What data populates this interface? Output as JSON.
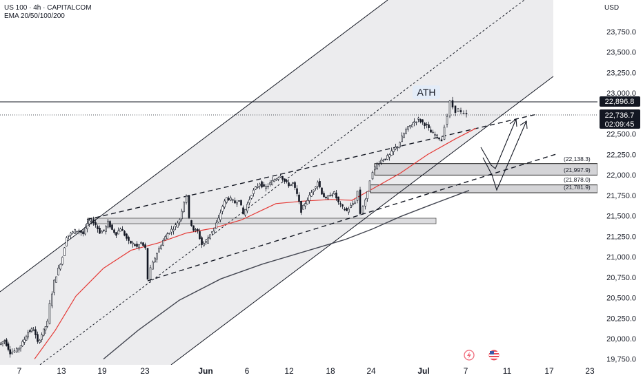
{
  "header": {
    "symbol_line": "US 100 · 4h · CAPITALCOM",
    "indicator_line": "EMA 20/50/100/200"
  },
  "currency": "USD",
  "colors": {
    "up_candle": "#26a69a",
    "down_candle": "#ef5350",
    "price_line": "#131722",
    "ema_fast": "#e53935",
    "ema_slow": "#434651",
    "channel_fill": "#e9e9eb",
    "zone_fill": "#d6d6d9",
    "badge_bg": "#131722"
  },
  "chart_data": {
    "type": "candlestick",
    "title": "US 100 · 4h · CAPITALCOM",
    "ylim": [
      19750,
      24000
    ],
    "ytick_labels": [
      "19,750.0",
      "20,000.0",
      "20,250.0",
      "20,500.0",
      "20,750.0",
      "21,000.0",
      "21,250.0",
      "21,500.0",
      "21,750.0",
      "22,000.0",
      "22,250.0",
      "22,500.0",
      "22,750.0",
      "23,000.0",
      "23,250.0",
      "23,500.0",
      "23,750.0"
    ],
    "yticks": [
      19750,
      20000,
      20250,
      20500,
      20750,
      21000,
      21250,
      21500,
      21750,
      22000,
      22250,
      22500,
      22750,
      23000,
      23250,
      23500,
      23750
    ],
    "xtick_labels": [
      "7",
      "13",
      "19",
      "23",
      "Jun",
      "6",
      "12",
      "18",
      "24",
      "Jul",
      "7",
      "11",
      "17",
      "23"
    ],
    "ath_label": "ATH",
    "ath_value": "22,896.8",
    "last_price": "22,736.7",
    "countdown": "02:09:45",
    "zones": [
      {
        "label_top": "(22,138.3)",
        "label_bottom": "(21,997.9)",
        "top": 22138.3,
        "bottom": 21997.9
      },
      {
        "label_top": "(21,878.0)",
        "label_bottom": "(21,781.9)",
        "top": 21878.0,
        "bottom": 21781.9
      }
    ],
    "price_path_key": [
      [
        0,
        19930
      ],
      [
        8,
        19980
      ],
      [
        16,
        19830
      ],
      [
        26,
        19860
      ],
      [
        34,
        19950
      ],
      [
        42,
        20080
      ],
      [
        50,
        20120
      ],
      [
        56,
        19950
      ],
      [
        62,
        20050
      ],
      [
        70,
        20200
      ],
      [
        74,
        20420
      ],
      [
        80,
        20700
      ],
      [
        86,
        20850
      ],
      [
        92,
        21000
      ],
      [
        98,
        21250
      ],
      [
        104,
        21280
      ],
      [
        110,
        21320
      ],
      [
        116,
        21320
      ],
      [
        122,
        21280
      ],
      [
        128,
        21400
      ],
      [
        134,
        21450
      ],
      [
        140,
        21390
      ],
      [
        146,
        21300
      ],
      [
        152,
        21320
      ],
      [
        158,
        21420
      ],
      [
        164,
        21330
      ],
      [
        170,
        21280
      ],
      [
        176,
        21350
      ],
      [
        182,
        21270
      ],
      [
        188,
        21180
      ],
      [
        194,
        21160
      ],
      [
        200,
        21120
      ],
      [
        206,
        21170
      ],
      [
        212,
        21100
      ],
      [
        216,
        20730
      ],
      [
        220,
        20850
      ],
      [
        226,
        20990
      ],
      [
        232,
        21100
      ],
      [
        238,
        21200
      ],
      [
        244,
        21280
      ],
      [
        250,
        21330
      ],
      [
        256,
        21380
      ],
      [
        262,
        21460
      ],
      [
        268,
        21680
      ],
      [
        272,
        21750
      ],
      [
        276,
        21460
      ],
      [
        282,
        21330
      ],
      [
        288,
        21310
      ],
      [
        294,
        21150
      ],
      [
        300,
        21180
      ],
      [
        306,
        21280
      ],
      [
        312,
        21350
      ],
      [
        318,
        21460
      ],
      [
        324,
        21620
      ],
      [
        330,
        21720
      ],
      [
        336,
        21700
      ],
      [
        342,
        21660
      ],
      [
        348,
        21700
      ],
      [
        354,
        21520
      ],
      [
        360,
        21640
      ],
      [
        366,
        21770
      ],
      [
        372,
        21840
      ],
      [
        378,
        21900
      ],
      [
        384,
        21840
      ],
      [
        390,
        21870
      ],
      [
        396,
        21920
      ],
      [
        402,
        21960
      ],
      [
        408,
        22000
      ],
      [
        414,
        21920
      ],
      [
        420,
        21880
      ],
      [
        426,
        21900
      ],
      [
        432,
        21760
      ],
      [
        438,
        21560
      ],
      [
        444,
        21660
      ],
      [
        450,
        21740
      ],
      [
        456,
        21830
      ],
      [
        462,
        21920
      ],
      [
        468,
        21780
      ],
      [
        474,
        21700
      ],
      [
        480,
        21760
      ],
      [
        486,
        21780
      ],
      [
        492,
        21660
      ],
      [
        498,
        21600
      ],
      [
        504,
        21560
      ],
      [
        510,
        21620
      ],
      [
        516,
        21680
      ],
      [
        520,
        21800
      ],
      [
        524,
        21530
      ],
      [
        528,
        21620
      ],
      [
        534,
        21780
      ],
      [
        538,
        21940
      ],
      [
        542,
        22050
      ],
      [
        548,
        22130
      ],
      [
        554,
        22180
      ],
      [
        560,
        22200
      ],
      [
        566,
        22240
      ],
      [
        572,
        22310
      ],
      [
        578,
        22350
      ],
      [
        584,
        22460
      ],
      [
        590,
        22550
      ],
      [
        596,
        22600
      ],
      [
        602,
        22650
      ],
      [
        608,
        22680
      ],
      [
        614,
        22640
      ],
      [
        620,
        22600
      ],
      [
        626,
        22520
      ],
      [
        632,
        22490
      ],
      [
        638,
        22450
      ],
      [
        642,
        22420
      ],
      [
        646,
        22600
      ],
      [
        650,
        22720
      ],
      [
        654,
        22890
      ],
      [
        658,
        22830
      ],
      [
        662,
        22780
      ],
      [
        666,
        22800
      ],
      [
        670,
        22760
      ],
      [
        674,
        22740
      ],
      [
        678,
        22736
      ]
    ],
    "ema_fast_key": [
      [
        50,
        19750
      ],
      [
        80,
        20100
      ],
      [
        110,
        20520
      ],
      [
        150,
        20860
      ],
      [
        190,
        21080
      ],
      [
        230,
        21170
      ],
      [
        270,
        21290
      ],
      [
        310,
        21350
      ],
      [
        350,
        21450
      ],
      [
        400,
        21650
      ],
      [
        440,
        21680
      ],
      [
        480,
        21700
      ],
      [
        510,
        21690
      ],
      [
        540,
        21830
      ],
      [
        580,
        22020
      ],
      [
        620,
        22250
      ],
      [
        660,
        22440
      ],
      [
        690,
        22570
      ]
    ],
    "ema_slow_key": [
      [
        150,
        19750
      ],
      [
        200,
        20100
      ],
      [
        260,
        20470
      ],
      [
        320,
        20730
      ],
      [
        380,
        20910
      ],
      [
        440,
        21060
      ],
      [
        500,
        21210
      ],
      [
        540,
        21340
      ],
      [
        580,
        21490
      ],
      [
        620,
        21620
      ],
      [
        680,
        21810
      ]
    ],
    "annotation_arrows": "two projected zig-zag paths into the support zones"
  }
}
